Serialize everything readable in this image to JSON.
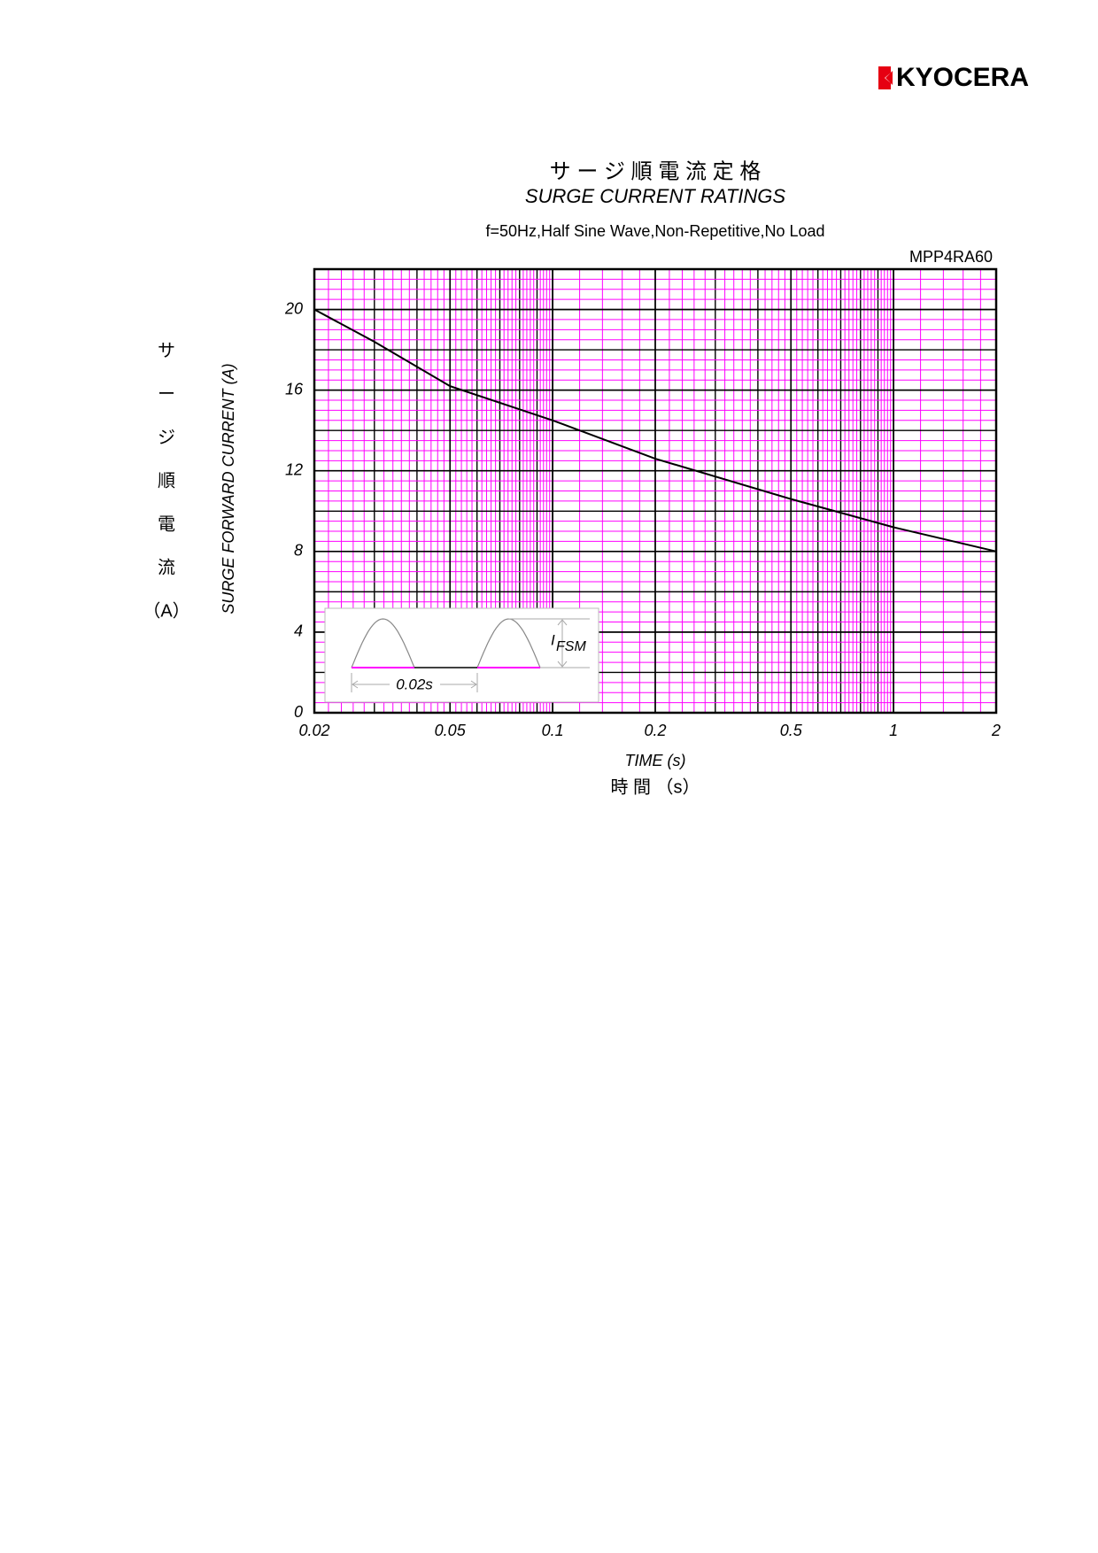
{
  "brand": "KYOCERA",
  "chart_data": {
    "type": "line",
    "title_ja": "サ ー ジ 順 電 流 定 格",
    "title": "SURGE CURRENT RATINGS",
    "subtitle": "f=50Hz,Half Sine Wave,Non-Repetitive,No Load",
    "part_number": "MPP4RA60",
    "x_label": "TIME (s)",
    "x_label_ja": "時 間 （s）",
    "y_label": "SURGE FORWARD CURRENT (A)",
    "y_label_ja": [
      "サ",
      "ー",
      "ジ",
      "順",
      "電",
      "流",
      "（A）"
    ],
    "x": [
      0.02,
      0.03,
      0.05,
      0.1,
      0.2,
      0.5,
      1,
      2
    ],
    "series": [
      {
        "name": "MPP4RA60",
        "color": "#000000",
        "values": [
          20,
          18.4,
          16.2,
          14.5,
          12.6,
          10.6,
          9.2,
          8
        ]
      }
    ],
    "xscale": "log",
    "xlim": [
      0.02,
      2
    ],
    "xticks": [
      0.02,
      0.05,
      0.1,
      0.2,
      0.5,
      1,
      2
    ],
    "ylim": [
      0,
      22
    ],
    "yticks": [
      0,
      4,
      8,
      12,
      16,
      20
    ],
    "grid": true,
    "minor_grid_color": "#ff00ff",
    "inset": {
      "period_label": "0.02s",
      "current_symbol": "I",
      "current_subscript": "FSM"
    }
  }
}
